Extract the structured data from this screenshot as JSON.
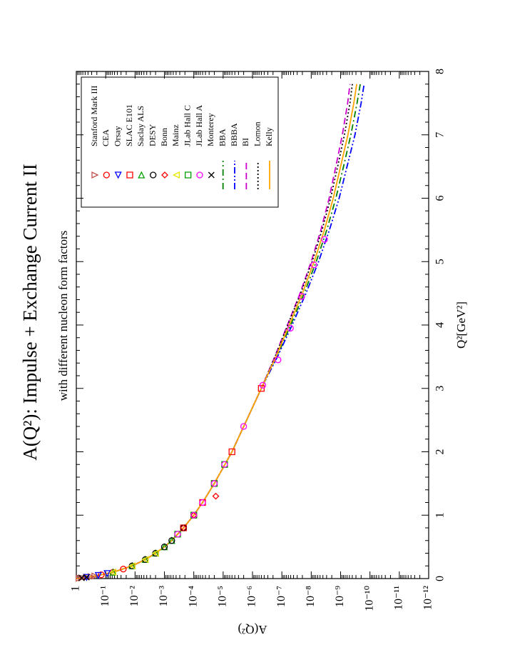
{
  "chart_data": {
    "type": "scatter",
    "title": "A(Q²): Impulse + Exchange Current II",
    "subtitle": "with different nucleon form factors",
    "x_label": "Q²[GeV²]",
    "y_label": "A(Q²)",
    "xlim": [
      0,
      8
    ],
    "xticks": [
      0,
      1,
      2,
      3,
      4,
      5,
      6,
      7,
      8
    ],
    "ylim": [
      1,
      1e-12
    ],
    "ylog": true,
    "yticks": [
      1,
      {
        "value": 0.1,
        "label": "10⁻¹"
      },
      {
        "value": 0.01,
        "label": "10⁻²"
      },
      {
        "value": 0.001,
        "label": "10⁻³"
      },
      {
        "value": 0.0001,
        "label": "10⁻⁴"
      },
      {
        "value": 1e-05,
        "label": "10⁻⁵"
      },
      {
        "value": 1e-06,
        "label": "10⁻⁶"
      },
      {
        "value": 1e-07,
        "label": "10⁻⁷"
      },
      {
        "value": 1e-08,
        "label": "10⁻⁸"
      },
      {
        "value": 1e-09,
        "label": "10⁻⁹"
      },
      {
        "value": 1e-10,
        "label": "10⁻¹⁰"
      },
      {
        "value": 1e-11,
        "label": "10⁻¹¹"
      },
      {
        "value": 1e-12,
        "label": "10⁻¹²"
      }
    ],
    "series": [
      {
        "name": "Stanford Mark III",
        "type": "scatter",
        "marker": "triangle-down",
        "color": "#c0504d",
        "x": [
          0.005,
          0.01,
          0.02,
          0.03,
          0.04
        ],
        "values": [
          0.81,
          0.66,
          0.447,
          0.316,
          0.234
        ]
      },
      {
        "name": "CEA",
        "type": "scatter",
        "marker": "circle",
        "color": "#ff0000",
        "x": [
          0.06,
          0.1,
          0.15
        ],
        "values": [
          0.141,
          0.0562,
          0.0251
        ]
      },
      {
        "name": "Orsay",
        "type": "scatter",
        "marker": "triangle-left",
        "color": "#0000ff",
        "x": [
          0.02,
          0.05,
          0.08
        ],
        "values": [
          0.447,
          0.178,
          0.0891
        ]
      },
      {
        "name": "SLAC E101",
        "type": "scatter",
        "marker": "square",
        "color": "#ff0000",
        "x": [
          0.8,
          1.0,
          1.2,
          1.5,
          2.0,
          3.0
        ],
        "values": [
          0.000224,
          0.0001,
          5.01e-05,
          2e-05,
          5.01e-06,
          5.01e-07
        ]
      },
      {
        "name": "Saclay ALS",
        "type": "scatter",
        "marker": "triangle-right",
        "color": "#00a000",
        "x": [
          0.1,
          0.2,
          0.3,
          0.4,
          0.5,
          0.6
        ],
        "values": [
          0.0562,
          0.0126,
          0.00447,
          0.002,
          0.001,
          0.000562
        ]
      },
      {
        "name": "DESY",
        "type": "scatter",
        "marker": "circle",
        "color": "#000000",
        "x": [
          0.2,
          0.3,
          0.4,
          0.5,
          0.6,
          0.8
        ],
        "values": [
          0.0126,
          0.00447,
          0.002,
          0.001,
          0.000562,
          0.000224
        ]
      },
      {
        "name": "Bonn",
        "type": "scatter",
        "marker": "diamond",
        "color": "#ff0000",
        "x": [
          0.8,
          1.0,
          1.3
        ],
        "values": [
          0.000224,
          0.0001,
          1.78e-05
        ]
      },
      {
        "name": "Mainz",
        "type": "scatter",
        "marker": "triangle-up",
        "color": "#e6e600",
        "x": [
          0.1,
          0.2,
          0.3,
          0.4
        ],
        "values": [
          0.0562,
          0.0126,
          0.00447,
          0.002
        ]
      },
      {
        "name": "JLab Hall C",
        "type": "scatter",
        "marker": "square",
        "color": "#00a000",
        "x": [
          0.7,
          1.0,
          1.5,
          1.8
        ],
        "values": [
          0.000355,
          0.0001,
          2e-05,
          8.91e-06
        ]
      },
      {
        "name": "JLab Hall A",
        "type": "scatter",
        "marker": "circle",
        "color": "#ff00ff",
        "x": [
          0.7,
          1.0,
          1.2,
          1.5,
          1.8,
          2.4,
          3.05,
          3.45,
          3.95,
          4.45,
          4.95,
          5.35
        ],
        "values": [
          0.000355,
          0.0001,
          5.01e-05,
          2e-05,
          8.91e-06,
          2e-06,
          4.47e-07,
          1.35e-07,
          5.1e-08,
          2.1e-08,
          8.1e-09,
          3.5e-09
        ]
      },
      {
        "name": "Monterey",
        "type": "scatter",
        "marker": "cross",
        "color": "#000000",
        "x": [
          0.01,
          0.02
        ],
        "values": [
          0.66,
          0.447
        ]
      },
      {
        "name": "BBA",
        "type": "line",
        "dash": "dash-dot",
        "color": "#008000",
        "x": [
          0,
          0.02,
          0.05,
          0.1,
          0.2,
          0.3,
          0.4,
          0.5,
          0.6,
          0.8,
          1.0,
          1.2,
          1.5,
          2.0,
          2.5,
          3.0,
          3.5,
          4.0,
          4.5,
          5.0,
          5.5,
          6.0,
          6.5,
          7.0,
          7.5,
          7.8
        ],
        "values": [
          1,
          0.447,
          0.178,
          0.0562,
          0.0126,
          0.00447,
          0.002,
          0.001,
          0.000562,
          0.000224,
          0.0001,
          5.01e-05,
          2e-05,
          5.01e-06,
          1.58e-06,
          5.01e-07,
          1.48e-07,
          5.01e-08,
          1.74e-08,
          6.76e-09,
          2.95e-09,
          1.45e-09,
          7.94e-10,
          4.47e-10,
          2.75e-10,
          2.14e-10
        ]
      },
      {
        "name": "BBBA",
        "type": "line",
        "dash": "dash-dot-dot",
        "color": "#0000ff",
        "x": [
          0,
          0.02,
          0.05,
          0.1,
          0.2,
          0.3,
          0.4,
          0.5,
          0.6,
          0.8,
          1.0,
          1.2,
          1.5,
          2.0,
          2.5,
          3.0,
          3.5,
          4.0,
          4.5,
          5.0,
          5.5,
          6.0,
          6.5,
          7.0,
          7.5,
          7.8
        ],
        "values": [
          1,
          0.447,
          0.178,
          0.0562,
          0.0126,
          0.00447,
          0.002,
          0.001,
          0.000562,
          0.000224,
          0.0001,
          5.01e-05,
          2e-05,
          5.01e-06,
          1.58e-06,
          5.01e-07,
          1.41e-07,
          4.47e-08,
          1.51e-08,
          5.62e-09,
          2.4e-09,
          1.12e-09,
          6.03e-10,
          3.24e-10,
          2e-10,
          1.58e-10
        ]
      },
      {
        "name": "BI",
        "type": "line",
        "dash": "dash",
        "color": "#cc00cc",
        "x": [
          0,
          0.02,
          0.05,
          0.1,
          0.2,
          0.3,
          0.4,
          0.5,
          0.6,
          0.8,
          1.0,
          1.2,
          1.5,
          2.0,
          2.5,
          3.0,
          3.5,
          4.0,
          4.5,
          5.0,
          5.5,
          6.0,
          6.5,
          7.0,
          7.5,
          7.8
        ],
        "values": [
          1,
          0.447,
          0.178,
          0.0562,
          0.0126,
          0.00447,
          0.002,
          0.001,
          0.000562,
          0.000224,
          0.0001,
          5.01e-05,
          2e-05,
          5.01e-06,
          1.58e-06,
          5.01e-07,
          1.74e-07,
          6.46e-08,
          2.4e-08,
          1e-08,
          4.68e-09,
          2.45e-09,
          1.45e-09,
          8.71e-10,
          5.75e-10,
          4.79e-10
        ]
      },
      {
        "name": "Lomon",
        "type": "line",
        "dash": "dot",
        "color": "#000000",
        "x": [
          0,
          0.02,
          0.05,
          0.1,
          0.2,
          0.3,
          0.4,
          0.5,
          0.6,
          0.8,
          1.0,
          1.2,
          1.5,
          2.0,
          2.5,
          3.0,
          3.5,
          4.0,
          4.5,
          5.0,
          5.5,
          6.0,
          6.5,
          7.0,
          7.5,
          7.8
        ],
        "values": [
          1,
          0.447,
          0.178,
          0.0562,
          0.0126,
          0.00447,
          0.002,
          0.001,
          0.000562,
          0.000224,
          0.0001,
          5.01e-05,
          2e-05,
          5.01e-06,
          1.58e-06,
          5.01e-07,
          1.7e-07,
          6.31e-08,
          2.29e-08,
          9.33e-09,
          4.27e-09,
          2.19e-09,
          1.26e-09,
          7.41e-10,
          4.79e-10,
          3.98e-10
        ]
      },
      {
        "name": "Kelly",
        "type": "line",
        "dash": "solid",
        "color": "#ffa500",
        "x": [
          0,
          0.02,
          0.05,
          0.1,
          0.2,
          0.3,
          0.4,
          0.5,
          0.6,
          0.8,
          1.0,
          1.2,
          1.5,
          2.0,
          2.5,
          3.0,
          3.5,
          4.0,
          4.5,
          5.0,
          5.5,
          6.0,
          6.5,
          7.0,
          7.5,
          7.8
        ],
        "values": [
          1,
          0.447,
          0.178,
          0.0562,
          0.0126,
          0.00447,
          0.002,
          0.001,
          0.000562,
          0.000224,
          0.0001,
          5.01e-05,
          2e-05,
          5.01e-06,
          1.58e-06,
          5.01e-07,
          1.58e-07,
          5.62e-08,
          2e-08,
          7.94e-09,
          3.55e-09,
          1.78e-09,
          1e-09,
          5.62e-10,
          3.55e-10,
          2.82e-10
        ]
      }
    ]
  }
}
